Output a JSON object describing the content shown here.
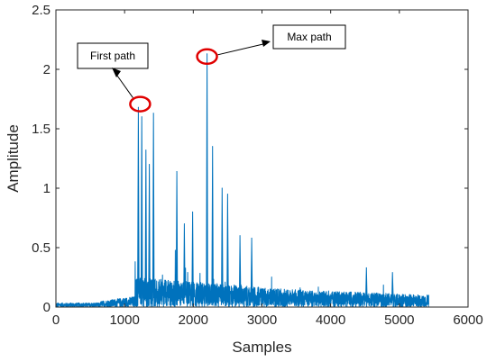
{
  "chart_data": {
    "type": "line",
    "xlabel": "Samples",
    "ylabel": "Amplitude",
    "xlim": [
      0,
      6000
    ],
    "ylim": [
      0,
      2.5
    ],
    "x_ticks": [
      "0",
      "1000",
      "2000",
      "3000",
      "4000",
      "5000",
      "6000"
    ],
    "y_ticks": [
      "0",
      "0.5",
      "1",
      "1.5",
      "2",
      "2.5"
    ],
    "grid": false,
    "line_color": "#0072BD",
    "marker_color": "#E00000",
    "n_samples": 5430,
    "peaks": [
      {
        "x": 1200,
        "y": 1.68
      },
      {
        "x": 1250,
        "y": 1.6
      },
      {
        "x": 1310,
        "y": 1.32
      },
      {
        "x": 1360,
        "y": 1.2
      },
      {
        "x": 1420,
        "y": 1.63
      },
      {
        "x": 1760,
        "y": 1.14
      },
      {
        "x": 1870,
        "y": 0.7
      },
      {
        "x": 1990,
        "y": 0.8
      },
      {
        "x": 2200,
        "y": 2.13
      },
      {
        "x": 2280,
        "y": 1.35
      },
      {
        "x": 2420,
        "y": 1.0
      },
      {
        "x": 2500,
        "y": 0.95
      },
      {
        "x": 2680,
        "y": 0.6
      },
      {
        "x": 2850,
        "y": 0.58
      },
      {
        "x": 4520,
        "y": 0.33
      },
      {
        "x": 4900,
        "y": 0.29
      }
    ],
    "annotations": [
      {
        "label": "First path",
        "x": 1200,
        "y": 1.7
      },
      {
        "label": "Max path",
        "x": 2200,
        "y": 2.1
      }
    ]
  }
}
